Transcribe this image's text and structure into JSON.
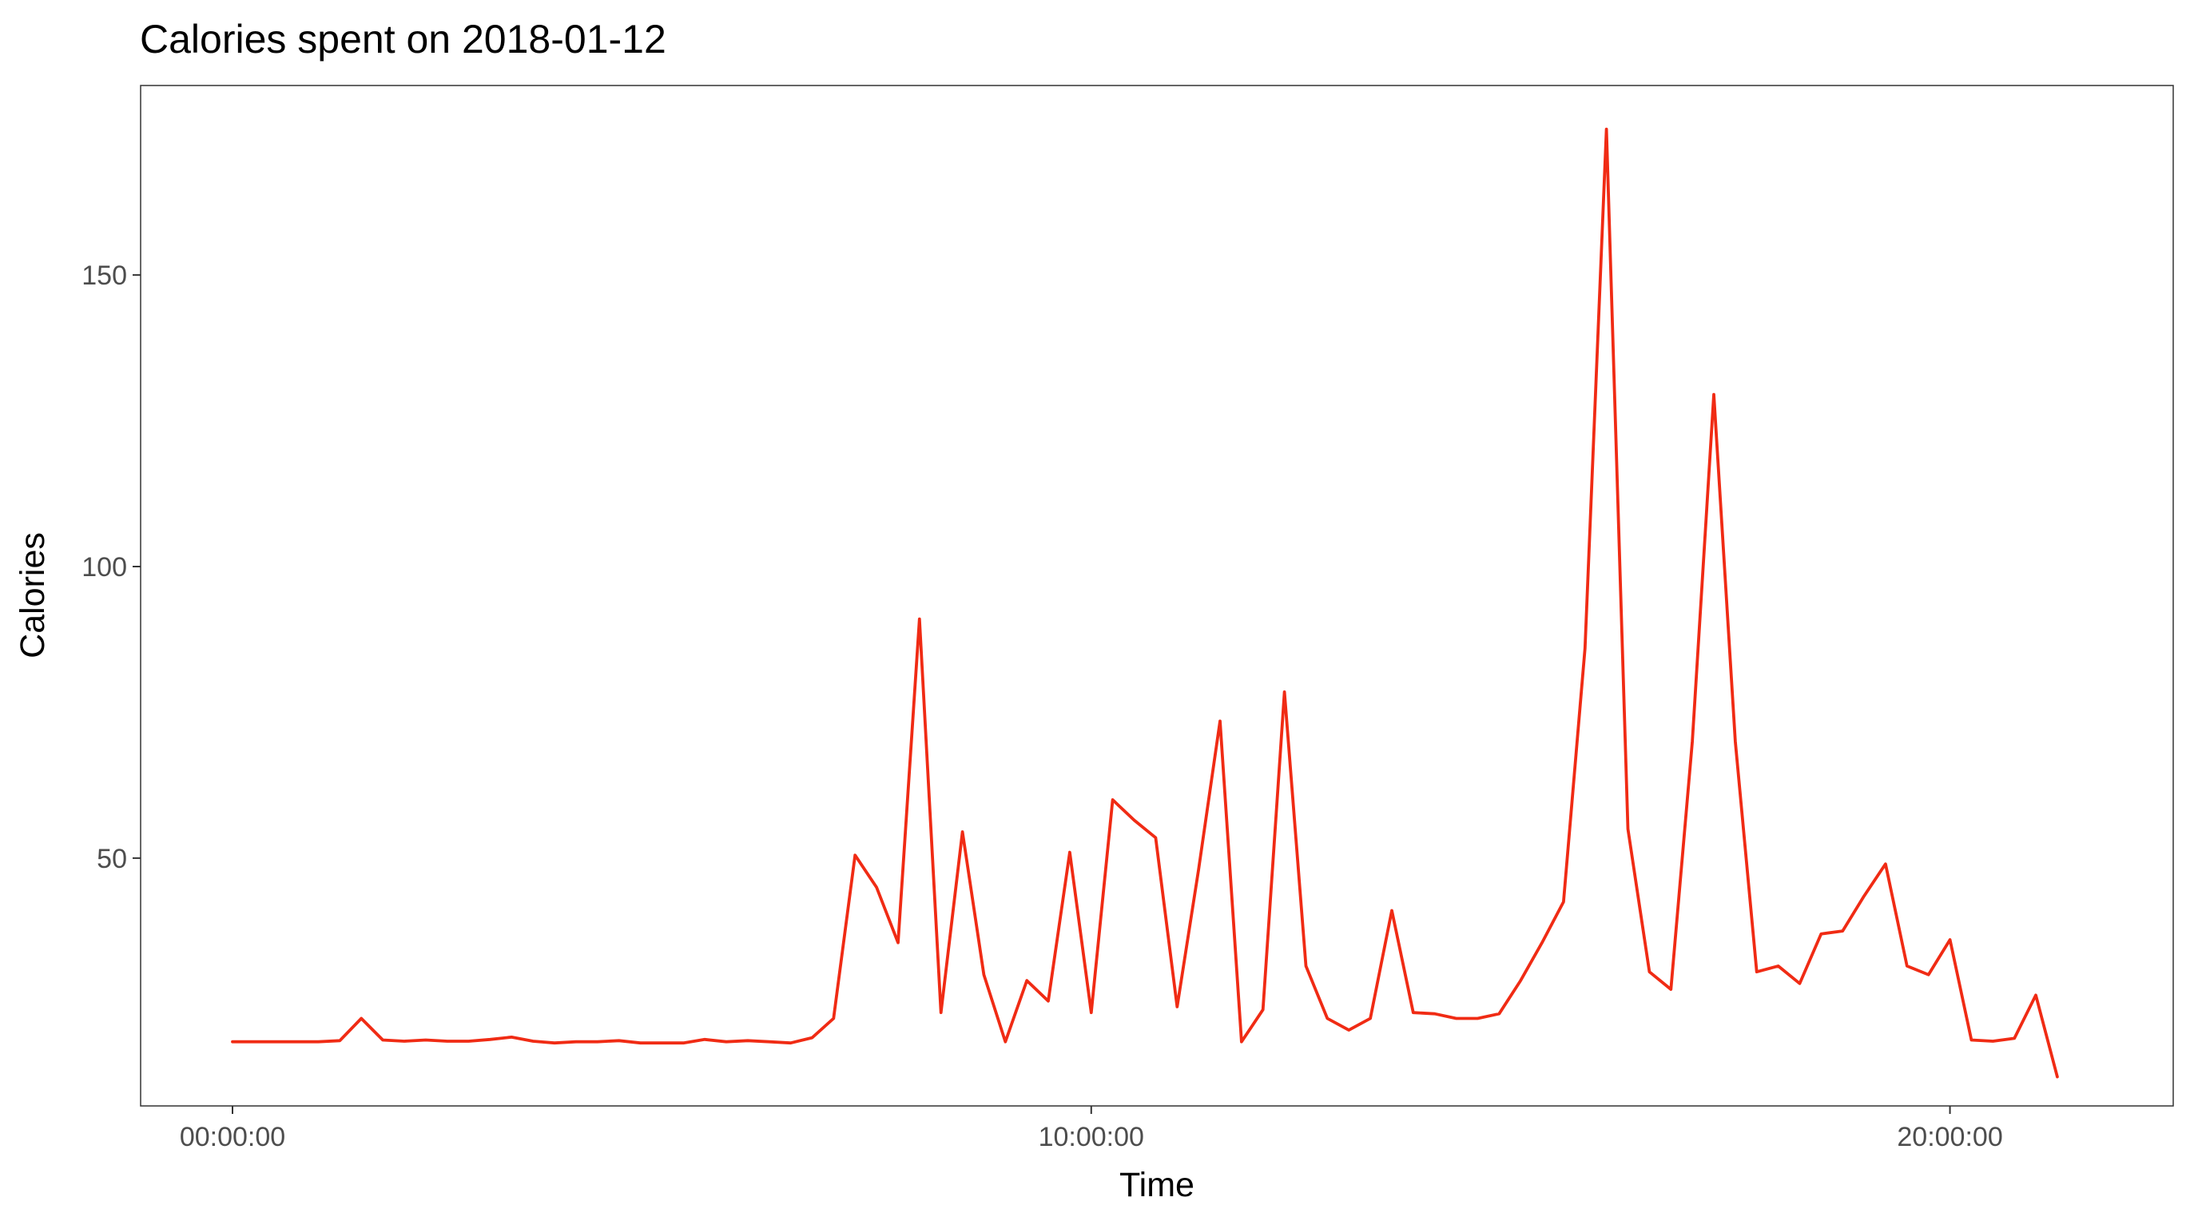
{
  "chart_data": {
    "type": "line",
    "title": "Calories spent on 2018-01-12",
    "xlabel": "Time",
    "ylabel": "Calories",
    "x_unit": "hours",
    "xlim": [
      -1.07,
      22.6
    ],
    "ylim": [
      7.5,
      182.5
    ],
    "x_ticks": [
      {
        "value": 0,
        "label": "00:00:00"
      },
      {
        "value": 10,
        "label": "10:00:00"
      },
      {
        "value": 20,
        "label": "20:00:00"
      }
    ],
    "y_ticks": [
      {
        "value": 50,
        "label": "50"
      },
      {
        "value": 100,
        "label": "100"
      },
      {
        "value": 150,
        "label": "150"
      }
    ],
    "grid": false,
    "legend": "none",
    "line_color": "#f02b14",
    "series": [
      {
        "x": [
          0.0,
          0.25,
          0.5,
          0.75,
          1.0,
          1.25,
          1.5,
          1.75,
          2.0,
          2.25,
          2.5,
          2.75,
          3.0,
          3.25,
          3.5,
          3.75,
          4.0,
          4.25,
          4.5,
          4.75,
          5.0,
          5.25,
          5.5,
          5.75,
          6.0,
          6.25,
          6.5,
          6.75,
          7.0,
          7.25,
          7.5,
          7.75,
          8.0,
          8.25,
          8.5,
          8.75,
          9.0,
          9.25,
          9.5,
          9.75,
          10.0,
          10.25,
          10.5,
          10.75,
          11.0,
          11.25,
          11.5,
          11.75,
          12.0,
          12.25,
          12.5,
          12.75,
          13.0,
          13.25,
          13.5,
          13.75,
          14.0,
          14.25,
          14.5,
          14.75,
          15.0,
          15.25,
          15.5,
          15.75,
          16.0,
          16.25,
          16.5,
          16.75,
          17.0,
          17.25,
          17.5,
          17.75,
          18.0,
          18.25,
          18.5,
          18.75,
          19.0,
          19.25,
          19.5,
          19.75,
          20.0,
          20.25,
          20.5,
          20.75,
          21.0,
          21.25
        ],
        "y": [
          18.5,
          18.5,
          18.5,
          18.5,
          18.5,
          18.7,
          22.5,
          18.8,
          18.6,
          18.8,
          18.6,
          18.6,
          18.9,
          19.3,
          18.6,
          18.3,
          18.5,
          18.5,
          18.7,
          18.3,
          18.3,
          18.3,
          18.9,
          18.5,
          18.7,
          18.5,
          18.3,
          19.2,
          22.5,
          50.5,
          45.0,
          35.5,
          91.0,
          23.5,
          54.5,
          30.0,
          18.5,
          29.0,
          25.5,
          51.0,
          23.5,
          60.0,
          56.5,
          53.5,
          24.5,
          48.0,
          73.5,
          18.5,
          24.0,
          78.5,
          31.5,
          22.5,
          20.5,
          22.5,
          41.0,
          23.5,
          23.3,
          22.5,
          22.5,
          23.3,
          29.0,
          35.5,
          42.5,
          86.0,
          175.0,
          55.0,
          30.5,
          27.5,
          70.0,
          129.5,
          70.0,
          30.5,
          31.5,
          28.5,
          37.0,
          37.5,
          43.5,
          49.0,
          31.5,
          30.0,
          36.0,
          18.8,
          18.6,
          19.1,
          26.5,
          12.5
        ]
      }
    ]
  }
}
